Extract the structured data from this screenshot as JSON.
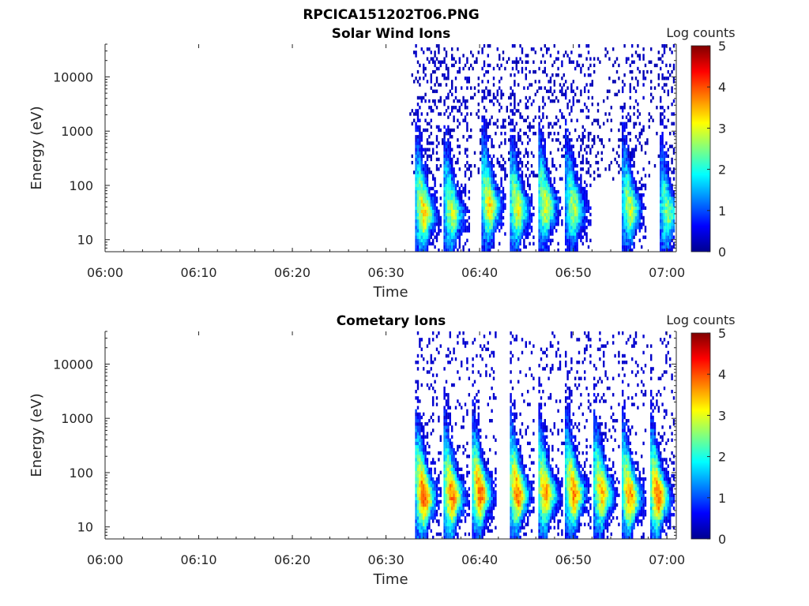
{
  "figure": {
    "title": "RPCICA151202T06.PNG"
  },
  "colorbar": {
    "label": "Log counts",
    "ticks": [
      "0",
      "1",
      "2",
      "3",
      "4",
      "5"
    ],
    "range": [
      0,
      5
    ],
    "colormap": "jet"
  },
  "chart_data": [
    {
      "type": "heatmap",
      "title": "Solar Wind Ions",
      "xlabel": "Time",
      "ylabel": "Energy (eV)",
      "xticks": [
        "06:00",
        "06:10",
        "06:20",
        "06:30",
        "06:40",
        "06:50",
        "07:00"
      ],
      "xlim": [
        "06:00",
        "07:01"
      ],
      "yticks": [
        "10",
        "100",
        "1000",
        "10000"
      ],
      "yscale": "log",
      "ylim": [
        6,
        40000
      ],
      "data_start": "06:32:30",
      "peaks": [
        {
          "time": "06:34",
          "energy_eV": 30,
          "log_counts": 3.3
        },
        {
          "time": "06:37",
          "energy_eV": 30,
          "log_counts": 2.8
        },
        {
          "time": "06:41",
          "energy_eV": 40,
          "log_counts": 3.2
        },
        {
          "time": "06:44",
          "energy_eV": 35,
          "log_counts": 3.0
        },
        {
          "time": "06:47",
          "energy_eV": 40,
          "log_counts": 3.0
        },
        {
          "time": "06:50",
          "energy_eV": 35,
          "log_counts": 2.7
        },
        {
          "time": "06:56",
          "energy_eV": 35,
          "log_counts": 2.8
        },
        {
          "time": "07:00",
          "energy_eV": 30,
          "log_counts": 2.5
        }
      ]
    },
    {
      "type": "heatmap",
      "title": "Cometary Ions",
      "xlabel": "Time",
      "ylabel": "Energy (eV)",
      "xticks": [
        "06:00",
        "06:10",
        "06:20",
        "06:30",
        "06:40",
        "06:50",
        "07:00"
      ],
      "xlim": [
        "06:00",
        "07:01"
      ],
      "yticks": [
        "10",
        "100",
        "1000",
        "10000"
      ],
      "yscale": "log",
      "ylim": [
        6,
        40000
      ],
      "data_start": "06:32:30",
      "peaks": [
        {
          "time": "06:34",
          "energy_eV": 35,
          "log_counts": 4.0
        },
        {
          "time": "06:37",
          "energy_eV": 35,
          "log_counts": 3.8
        },
        {
          "time": "06:40",
          "energy_eV": 40,
          "log_counts": 3.9
        },
        {
          "time": "06:44",
          "energy_eV": 40,
          "log_counts": 3.8
        },
        {
          "time": "06:47",
          "energy_eV": 40,
          "log_counts": 3.6
        },
        {
          "time": "06:50",
          "energy_eV": 40,
          "log_counts": 3.7
        },
        {
          "time": "06:53",
          "energy_eV": 40,
          "log_counts": 3.4
        },
        {
          "time": "06:56",
          "energy_eV": 35,
          "log_counts": 3.7
        },
        {
          "time": "06:59",
          "energy_eV": 35,
          "log_counts": 3.9
        }
      ]
    }
  ]
}
